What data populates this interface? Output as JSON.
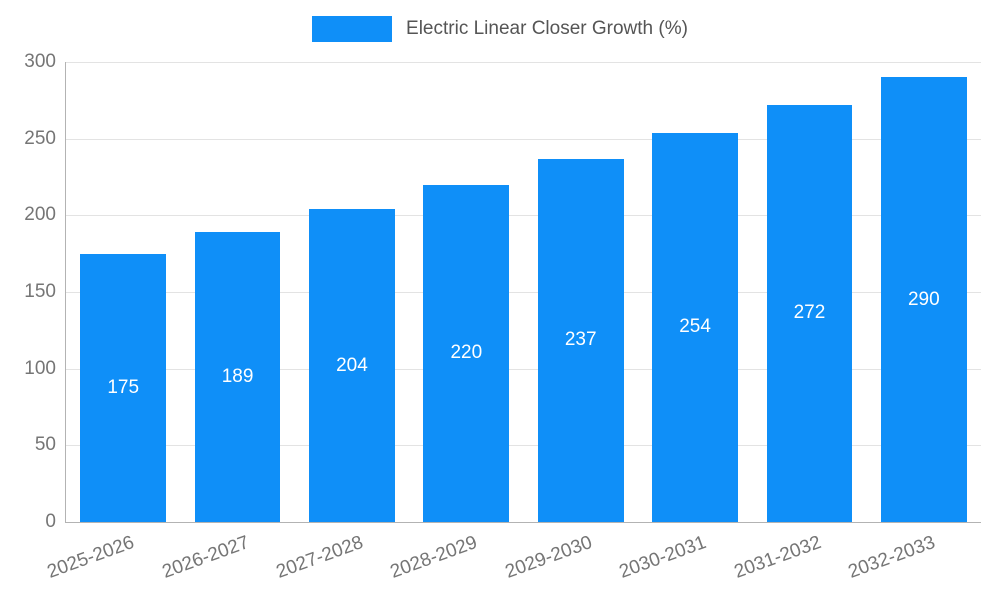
{
  "chart_data": {
    "type": "bar",
    "title": "Electric Linear Closer Growth (%)",
    "categories": [
      "2025-2026",
      "2026-2027",
      "2027-2028",
      "2028-2029",
      "2029-2030",
      "2030-2031",
      "2031-2032",
      "2032-2033"
    ],
    "values": [
      175,
      189,
      204,
      220,
      237,
      254,
      272,
      290
    ],
    "xlabel": "",
    "ylabel": "",
    "ylim": [
      0,
      300
    ],
    "yticks": [
      0,
      50,
      100,
      150,
      200,
      250,
      300
    ],
    "grid": true,
    "legend_position": "top",
    "bar_color": "#0f8ff8",
    "value_label_color": "#ffffff",
    "axis_label_color": "#757575",
    "legend_text_color": "#555555"
  }
}
